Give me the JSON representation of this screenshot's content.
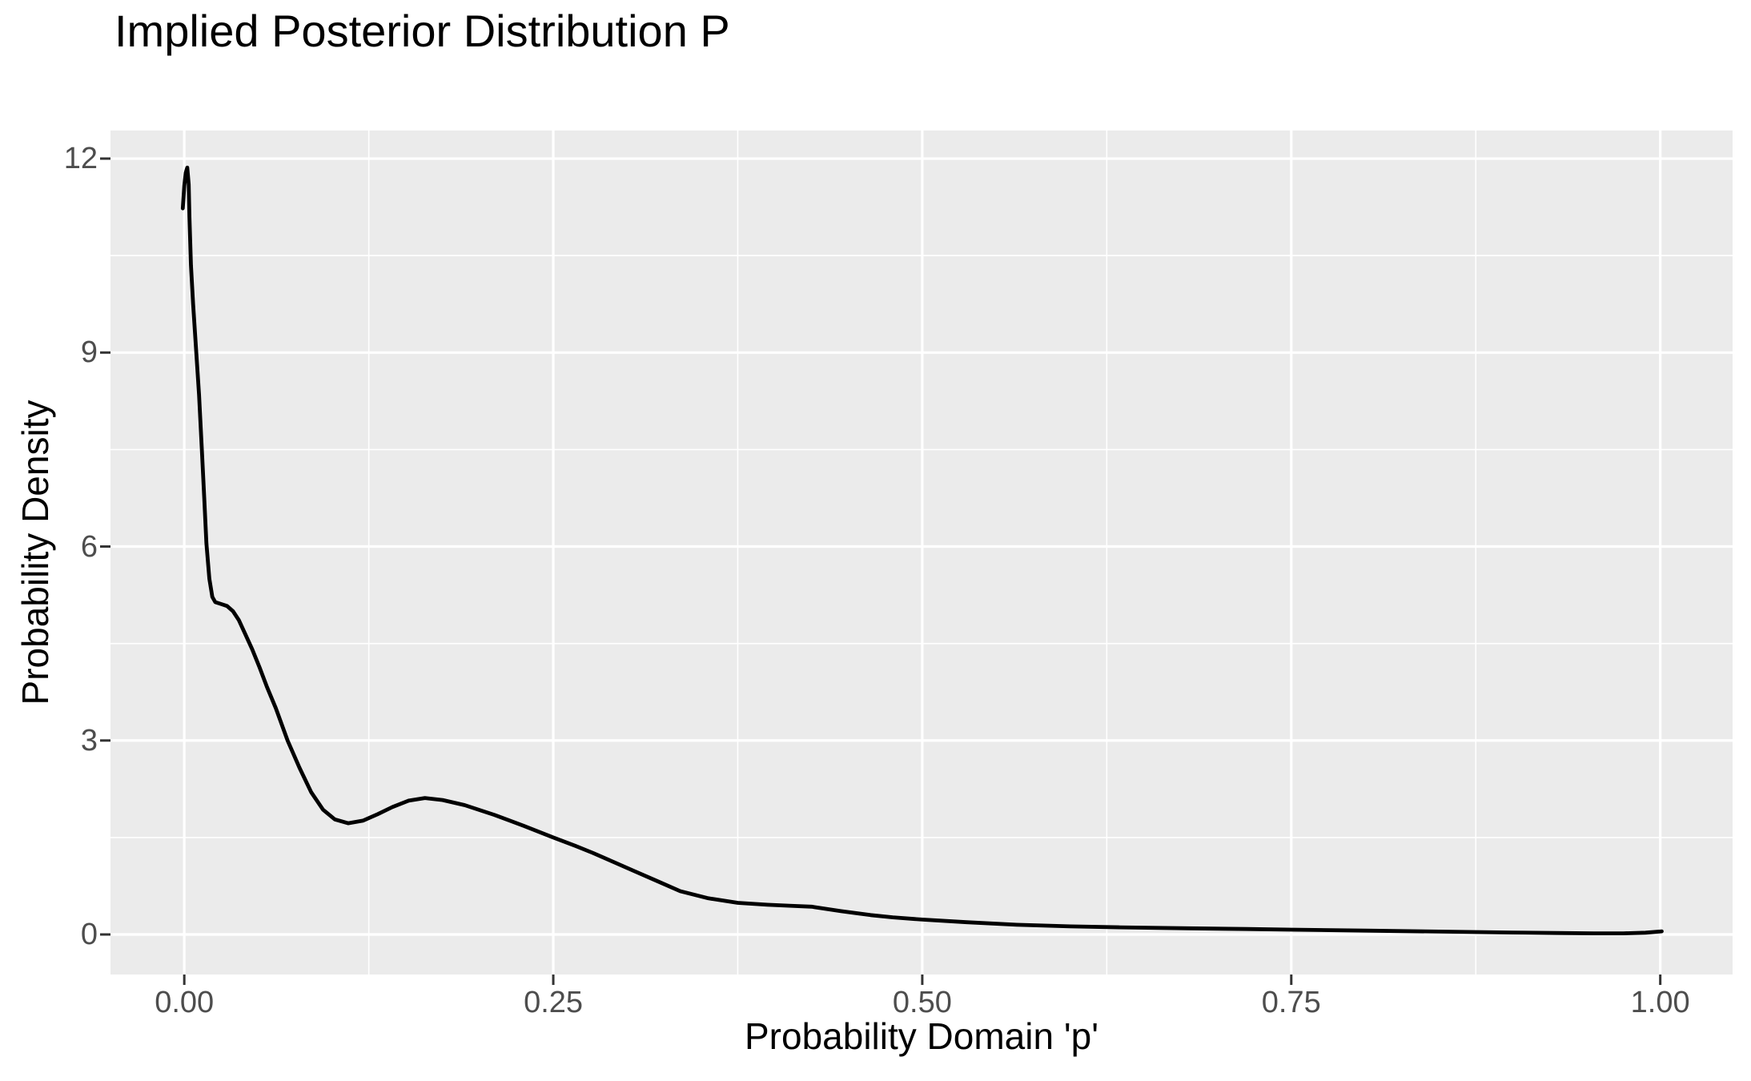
{
  "chart_data": {
    "type": "line",
    "title": "Implied Posterior Distribution P",
    "xlabel": "Probability Domain 'p'",
    "ylabel": "Probability Density",
    "x_tick_labels": [
      "0.00",
      "0.25",
      "0.50",
      "0.75",
      "1.00"
    ],
    "x_tick_values": [
      0,
      0.25,
      0.5,
      0.75,
      1
    ],
    "y_tick_labels": [
      "0",
      "3",
      "6",
      "9",
      "12"
    ],
    "y_tick_values": [
      0,
      3,
      6,
      9,
      12
    ],
    "x_minor_values": [
      0.125,
      0.375,
      0.625,
      0.875
    ],
    "y_minor_values": [
      1.5,
      4.5,
      7.5,
      10.5
    ],
    "xlim": [
      -0.05,
      1.049
    ],
    "ylim": [
      -0.619,
      12.434
    ],
    "grid": "white major and minor gridlines on grey panel",
    "legend_position": "none",
    "series": [
      {
        "name": "posterior density curve",
        "color": "#000000",
        "points": [
          [
            -0.001,
            11.23
          ],
          [
            0,
            11.58
          ],
          [
            0.001,
            11.78
          ],
          [
            0.002,
            11.86
          ],
          [
            0.003,
            11.6
          ],
          [
            0.0035,
            11.1
          ],
          [
            0.0045,
            10.35
          ],
          [
            0.006,
            9.75
          ],
          [
            0.008,
            9.05
          ],
          [
            0.01,
            8.35
          ],
          [
            0.012,
            7.45
          ],
          [
            0.0135,
            6.75
          ],
          [
            0.015,
            6.05
          ],
          [
            0.017,
            5.5
          ],
          [
            0.019,
            5.22
          ],
          [
            0.021,
            5.14
          ],
          [
            0.025,
            5.11
          ],
          [
            0.029,
            5.08
          ],
          [
            0.033,
            5.0
          ],
          [
            0.037,
            4.86
          ],
          [
            0.041,
            4.66
          ],
          [
            0.046,
            4.41
          ],
          [
            0.051,
            4.13
          ],
          [
            0.056,
            3.83
          ],
          [
            0.062,
            3.5
          ],
          [
            0.07,
            3.0
          ],
          [
            0.078,
            2.58
          ],
          [
            0.086,
            2.2
          ],
          [
            0.094,
            1.93
          ],
          [
            0.102,
            1.78
          ],
          [
            0.111,
            1.72
          ],
          [
            0.121,
            1.76
          ],
          [
            0.131,
            1.86
          ],
          [
            0.141,
            1.97
          ],
          [
            0.152,
            2.07
          ],
          [
            0.163,
            2.11
          ],
          [
            0.175,
            2.08
          ],
          [
            0.19,
            2.0
          ],
          [
            0.21,
            1.85
          ],
          [
            0.23,
            1.68
          ],
          [
            0.25,
            1.5
          ],
          [
            0.265,
            1.37
          ],
          [
            0.277,
            1.26
          ],
          [
            0.29,
            1.13
          ],
          [
            0.305,
            0.98
          ],
          [
            0.32,
            0.83
          ],
          [
            0.336,
            0.67
          ],
          [
            0.355,
            0.56
          ],
          [
            0.375,
            0.49
          ],
          [
            0.395,
            0.46
          ],
          [
            0.41,
            0.445
          ],
          [
            0.425,
            0.43
          ],
          [
            0.445,
            0.36
          ],
          [
            0.465,
            0.3
          ],
          [
            0.48,
            0.265
          ],
          [
            0.5,
            0.23
          ],
          [
            0.53,
            0.19
          ],
          [
            0.564,
            0.15
          ],
          [
            0.6,
            0.125
          ],
          [
            0.634,
            0.11
          ],
          [
            0.68,
            0.095
          ],
          [
            0.72,
            0.085
          ],
          [
            0.75,
            0.075
          ],
          [
            0.8,
            0.06
          ],
          [
            0.85,
            0.045
          ],
          [
            0.9,
            0.03
          ],
          [
            0.93,
            0.022
          ],
          [
            0.955,
            0.017
          ],
          [
            0.975,
            0.018
          ],
          [
            0.99,
            0.028
          ],
          [
            1.001,
            0.048
          ]
        ]
      }
    ],
    "style": {
      "background": "#FFFFFF",
      "panel_bg": "#EBEBEB",
      "grid_color": "#FFFFFF",
      "major_grid_width": 3.2,
      "minor_grid_width": 1.6,
      "axis_tick_color": "#333333",
      "axis_tick_width": 3,
      "axis_tick_length": 13,
      "tick_label_color": "#4D4D4D",
      "text_color": "#000000",
      "line_width": 4.8
    }
  }
}
